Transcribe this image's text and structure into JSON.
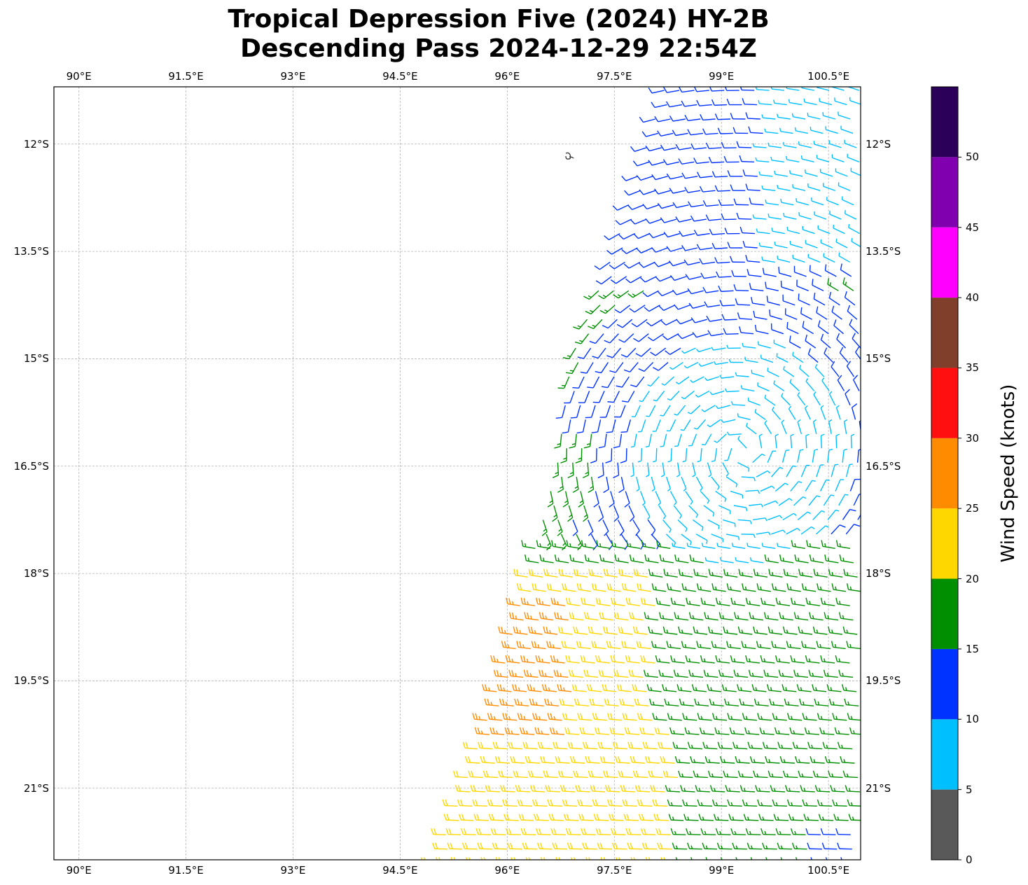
{
  "title": {
    "line1": "Tropical Depression Five (2024) HY-2B",
    "line2": "Descending Pass 2024-12-29 22:54Z"
  },
  "map": {
    "lon_range": [
      89.65,
      100.95
    ],
    "lat_range": [
      -22.0,
      -11.2
    ],
    "lon_ticks": [
      90,
      91.5,
      93,
      94.5,
      96,
      97.5,
      99,
      100.5
    ],
    "lon_tick_labels": [
      "90°E",
      "91.5°E",
      "93°E",
      "94.5°E",
      "96°E",
      "97.5°E",
      "99°E",
      "100.5°E"
    ],
    "lat_ticks": [
      -12,
      -13.5,
      -15,
      -16.5,
      -18,
      -19.5,
      -21
    ],
    "lat_tick_labels": [
      "12°S",
      "13.5°S",
      "15°S",
      "16.5°S",
      "18°S",
      "19.5°S",
      "21°S"
    ],
    "grid": "dashed",
    "swath_eastern_edge": "100.95°E",
    "swath_western_edge_at": [
      {
        "lat": -11.25,
        "lon": 98.2
      },
      {
        "lat": -13.5,
        "lon": 97.5
      },
      {
        "lat": -15.0,
        "lon": 96.9
      },
      {
        "lat": -16.5,
        "lon": 96.7
      },
      {
        "lat": -18.0,
        "lon": 96.3
      },
      {
        "lat": -19.5,
        "lon": 95.9
      },
      {
        "lat": -21.0,
        "lon": 95.4
      },
      {
        "lat": -22.0,
        "lon": 95.0
      }
    ],
    "wind_regions": [
      {
        "name": "north_cyan",
        "speed_range": [
          5,
          10
        ],
        "note": "NE corner"
      },
      {
        "name": "north_blue",
        "speed_range": [
          10,
          15
        ]
      },
      {
        "name": "center_cyan",
        "speed_range": [
          5,
          10
        ]
      },
      {
        "name": "west_green",
        "speed_range": [
          15,
          20
        ]
      },
      {
        "name": "south_green",
        "speed_range": [
          15,
          20
        ]
      },
      {
        "name": "southwest_yellow",
        "speed_range": [
          20,
          25
        ]
      },
      {
        "name": "southwest_orange",
        "speed_range": [
          25,
          30
        ]
      }
    ]
  },
  "colorbar": {
    "label": "Wind Speed (knots)",
    "ticks": [
      0,
      5,
      10,
      15,
      20,
      25,
      30,
      35,
      40,
      45,
      50
    ],
    "tick_labels": [
      "0",
      "5",
      "10",
      "15",
      "20",
      "25",
      "30",
      "35",
      "40",
      "45",
      "50"
    ],
    "bins": [
      {
        "range": [
          0,
          5
        ],
        "color": "#595959"
      },
      {
        "range": [
          5,
          10
        ],
        "color": "#00bfff"
      },
      {
        "range": [
          10,
          15
        ],
        "color": "#0033ff"
      },
      {
        "range": [
          15,
          20
        ],
        "color": "#008f00"
      },
      {
        "range": [
          20,
          25
        ],
        "color": "#ffd700"
      },
      {
        "range": [
          25,
          30
        ],
        "color": "#ff8c00"
      },
      {
        "range": [
          30,
          35
        ],
        "color": "#ff0f0f"
      },
      {
        "range": [
          35,
          40
        ],
        "color": "#7f3f2a"
      },
      {
        "range": [
          40,
          45
        ],
        "color": "#ff00ff"
      },
      {
        "range": [
          45,
          50
        ],
        "color": "#8000b0"
      },
      {
        "range": [
          50,
          55
        ],
        "color": "#2b0059"
      }
    ]
  }
}
